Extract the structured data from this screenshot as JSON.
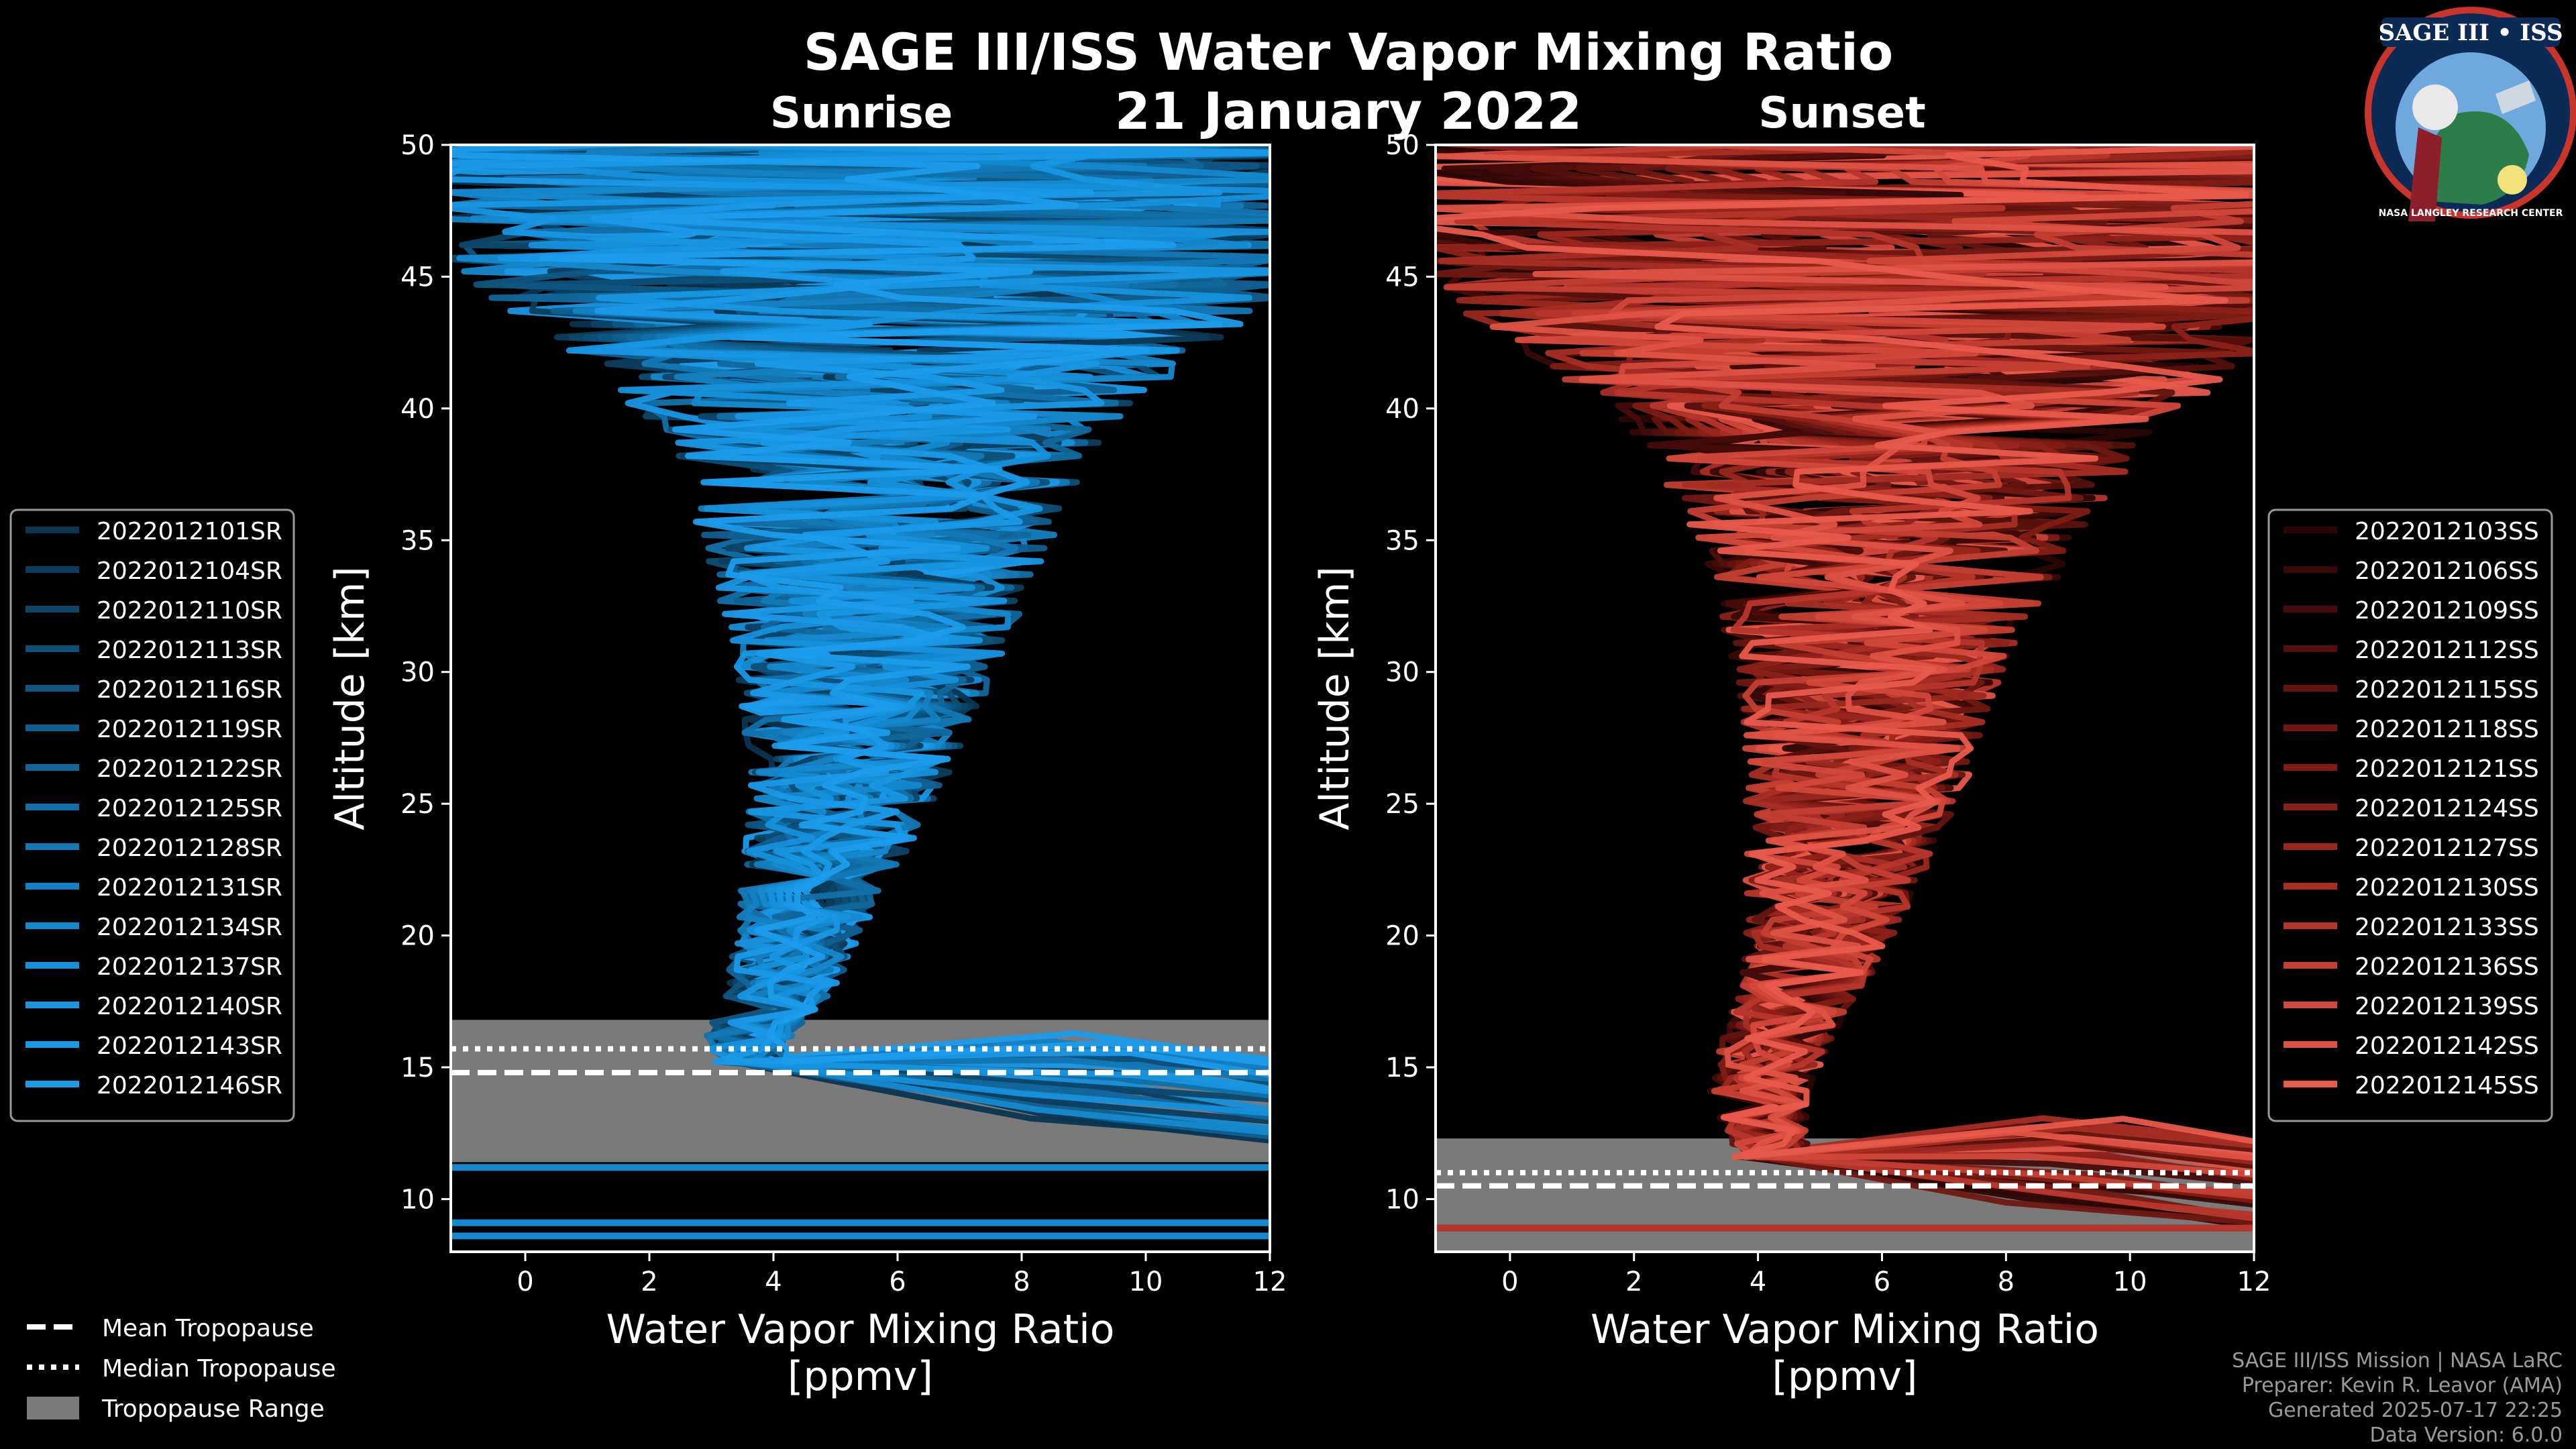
{
  "chart_data": {
    "title": "SAGE III/ISS Water Vapor Mixing Ratio",
    "subtitle": "21 January 2022",
    "panels": [
      {
        "title": "Sunrise",
        "type": "line",
        "xlabel": "Water Vapor Mixing Ratio",
        "xunit": "[ppmv]",
        "ylabel": "Altitude [km]",
        "xlim": [
          -1.2,
          12
        ],
        "ylim": [
          8,
          50
        ],
        "xticks": [
          0,
          2,
          4,
          6,
          8,
          10,
          12
        ],
        "yticks": [
          10,
          15,
          20,
          25,
          30,
          35,
          40,
          45,
          50
        ],
        "color": "#1a8fd6",
        "tropopause": {
          "mean": 14.8,
          "median": 15.7,
          "range": [
            11.4,
            16.8
          ]
        },
        "low_level_lines": [
          11.2,
          9.1,
          8.6
        ],
        "legend": [
          "2022012101SR",
          "2022012104SR",
          "2022012110SR",
          "2022012113SR",
          "2022012116SR",
          "2022012119SR",
          "2022012122SR",
          "2022012125SR",
          "2022012128SR",
          "2022012131SR",
          "2022012134SR",
          "2022012137SR",
          "2022012140SR",
          "2022012143SR",
          "2022012146SR"
        ],
        "legend_colors": [
          "#0b3550",
          "#0c3d5d",
          "#0d4669",
          "#0e4e76",
          "#0f5683",
          "#105f90",
          "#11679c",
          "#1270a9",
          "#1378b6",
          "#1481c2",
          "#1589cf",
          "#1690db",
          "#1896e3",
          "#1a99e8",
          "#1c9cec"
        ],
        "envelope": [
          {
            "alt": 14,
            "mean": 3.8,
            "spread": 0.6
          },
          {
            "alt": 16,
            "mean": 3.6,
            "spread": 0.7
          },
          {
            "alt": 18,
            "mean": 4.1,
            "spread": 0.9
          },
          {
            "alt": 20,
            "mean": 4.4,
            "spread": 1.0
          },
          {
            "alt": 23,
            "mean": 4.8,
            "spread": 1.3
          },
          {
            "alt": 26,
            "mean": 5.2,
            "spread": 1.6
          },
          {
            "alt": 30,
            "mean": 5.5,
            "spread": 2.1
          },
          {
            "alt": 33,
            "mean": 5.6,
            "spread": 2.5
          },
          {
            "alt": 36,
            "mean": 5.7,
            "spread": 3.0
          },
          {
            "alt": 39,
            "mean": 5.8,
            "spread": 3.6
          },
          {
            "alt": 42,
            "mean": 5.8,
            "spread": 5.0
          },
          {
            "alt": 45,
            "mean": 5.8,
            "spread": 7.0
          },
          {
            "alt": 50,
            "mean": 5.8,
            "spread": 9.0
          }
        ],
        "low_tails": {
          "start_alt": 15.2,
          "end_x": 12,
          "end_alts": [
            12.5,
            13.2,
            14.0,
            14.6,
            15.0
          ]
        }
      },
      {
        "title": "Sunset",
        "type": "line",
        "xlabel": "Water Vapor Mixing Ratio",
        "xunit": "[ppmv]",
        "ylabel": "Altitude [km]",
        "xlim": [
          -1.2,
          12
        ],
        "ylim": [
          8,
          50
        ],
        "xticks": [
          0,
          2,
          4,
          6,
          8,
          10,
          12
        ],
        "yticks": [
          10,
          15,
          20,
          25,
          30,
          35,
          40,
          45,
          50
        ],
        "color": "#e8584a",
        "tropopause": {
          "mean": 10.5,
          "median": 11.0,
          "range": [
            8.0,
            12.3
          ]
        },
        "low_level_lines": [
          8.9
        ],
        "legend": [
          "2022012103SS",
          "2022012106SS",
          "2022012109SS",
          "2022012112SS",
          "2022012115SS",
          "2022012118SS",
          "2022012121SS",
          "2022012124SS",
          "2022012127SS",
          "2022012130SS",
          "2022012133SS",
          "2022012136SS",
          "2022012139SS",
          "2022012142SS",
          "2022012145SS"
        ],
        "legend_colors": [
          "#2a0604",
          "#380907",
          "#460c09",
          "#54100c",
          "#62140f",
          "#701812",
          "#7e1c15",
          "#8c2119",
          "#9a271e",
          "#a82e24",
          "#b6362b",
          "#c43f33",
          "#d2483b",
          "#de5244",
          "#e85a4c"
        ],
        "envelope": [
          {
            "alt": 12,
            "mean": 4.2,
            "spread": 0.6
          },
          {
            "alt": 14,
            "mean": 4.0,
            "spread": 0.8
          },
          {
            "alt": 16,
            "mean": 4.3,
            "spread": 0.9
          },
          {
            "alt": 18,
            "mean": 4.7,
            "spread": 1.0
          },
          {
            "alt": 20,
            "mean": 5.0,
            "spread": 1.2
          },
          {
            "alt": 23,
            "mean": 5.3,
            "spread": 1.5
          },
          {
            "alt": 26,
            "mean": 5.6,
            "spread": 1.8
          },
          {
            "alt": 30,
            "mean": 5.8,
            "spread": 2.2
          },
          {
            "alt": 33,
            "mean": 6.0,
            "spread": 2.7
          },
          {
            "alt": 36,
            "mean": 6.1,
            "spread": 3.3
          },
          {
            "alt": 39,
            "mean": 6.2,
            "spread": 4.2
          },
          {
            "alt": 42,
            "mean": 6.3,
            "spread": 6.0
          },
          {
            "alt": 45,
            "mean": 6.3,
            "spread": 8.0
          },
          {
            "alt": 50,
            "mean": 6.3,
            "spread": 9.5
          }
        ],
        "low_tails": {
          "start_alt": 11.6,
          "end_x": 12,
          "end_alts": [
            9.2,
            10.0,
            10.8,
            11.4,
            12.0
          ]
        }
      }
    ],
    "tropopause_legend": [
      "Mean Tropopause",
      "Median Tropopause",
      "Tropopause Range"
    ]
  },
  "logo": {
    "text": "SAGE III • ISS",
    "ring_text": "NASA LANGLEY RESEARCH CENTER"
  },
  "credits": [
    "SAGE III/ISS Mission | NASA LaRC",
    "Preparer: Kevin R. Leavor (AMA)",
    "Generated 2025-07-17 22:25",
    "Data Version: 6.0.0"
  ],
  "colors": {
    "background": "#000000",
    "tropopause_fill": "#7a7a7a",
    "axis": "#ffffff"
  }
}
